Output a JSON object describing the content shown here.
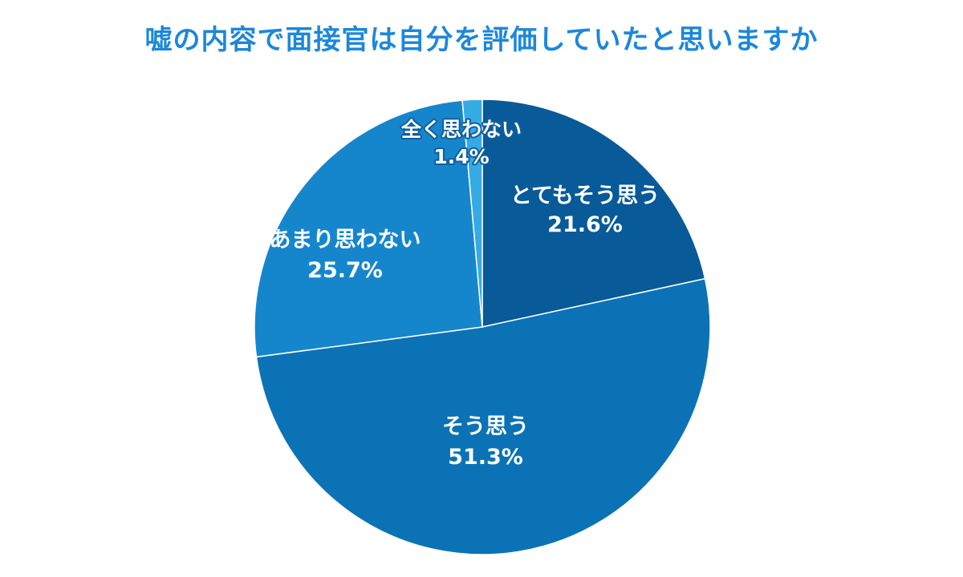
{
  "chart_data": {
    "type": "pie",
    "title": "嘘の内容で面接官は自分を評価していたと思いますか",
    "slices": [
      {
        "label": "とてもそう思う",
        "value": 21.6,
        "value_label": "21.6%",
        "color": "#085a98"
      },
      {
        "label": "そう思う",
        "value": 51.3,
        "value_label": "51.3%",
        "color": "#0b73b5"
      },
      {
        "label": "あまり思わない",
        "value": 25.7,
        "value_label": "25.7%",
        "color": "#1686cc"
      },
      {
        "label": "全く思わない",
        "value": 1.4,
        "value_label": "1.4%",
        "color": "#35abe3"
      }
    ],
    "start": "12 o'clock",
    "direction": "clockwise"
  },
  "colors": {
    "title": "#1c87db",
    "slice_border": "#ffffff",
    "label_text": "#ffffff"
  }
}
